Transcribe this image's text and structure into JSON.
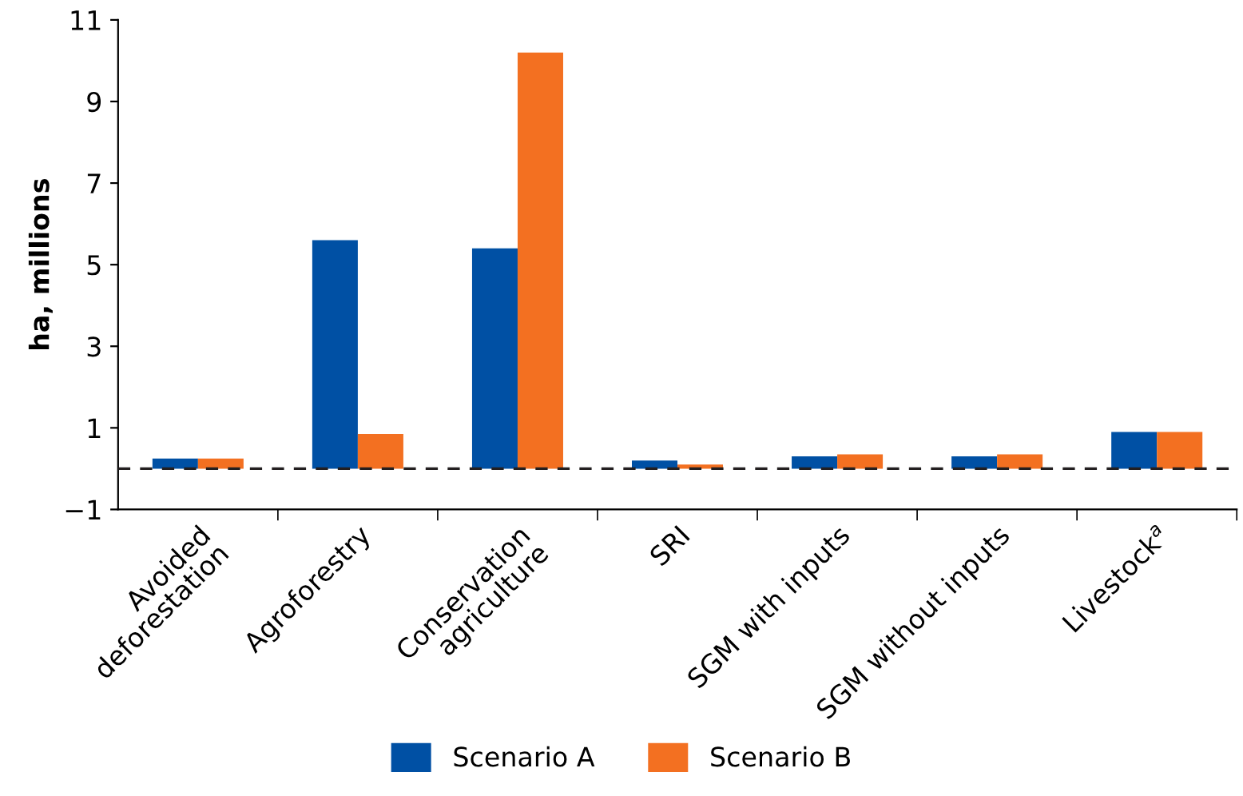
{
  "chart_data": {
    "type": "bar",
    "ylabel": "ha, millions",
    "categories": [
      "Avoided\ndeforestation",
      "Agroforestry",
      "Conservation\nagriculture",
      "SRI",
      "SGM with inputs",
      "SGM without inputs",
      "Livestock$^{a}$"
    ],
    "series": [
      {
        "name": "Scenario A",
        "color": "#0050a4",
        "values": [
          0.25,
          5.6,
          5.4,
          0.2,
          0.3,
          0.3,
          0.9
        ]
      },
      {
        "name": "Scenario B",
        "color": "#f37021",
        "values": [
          0.25,
          0.85,
          10.2,
          0.1,
          0.35,
          0.35,
          0.9
        ]
      }
    ],
    "ylim": [
      -1,
      11
    ],
    "yticks": [
      {
        "value": -1,
        "label": "−1"
      },
      1,
      3,
      5,
      7,
      9,
      11
    ],
    "ref_lines": [
      {
        "axis": "y",
        "value": 0,
        "color": "#231f20",
        "line_style": "dashed"
      }
    ],
    "grid": false,
    "legend": "bottom"
  }
}
